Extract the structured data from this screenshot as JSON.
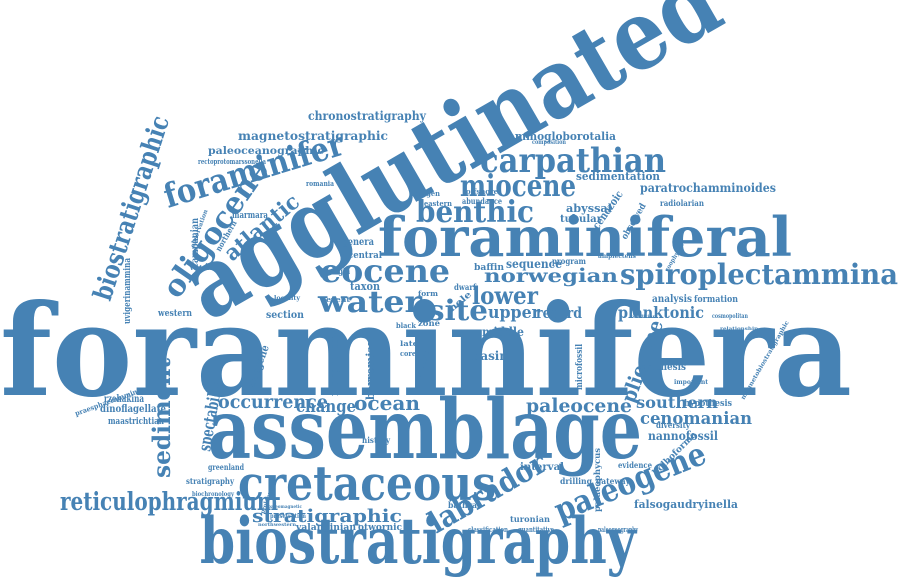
{
  "cloud": {
    "color": "#4682b4",
    "words": [
      "foraminifera",
      "agglutinated",
      "assemblage",
      "biostratigraphy",
      "foraminiferal",
      "cretaceous",
      "carpathian",
      "foraminifer",
      "biostratigraphic",
      "spiroplectammina",
      "eocene",
      "miocene",
      "benthic",
      "oligocene",
      "water",
      "paleogene",
      "labrador",
      "reticulophragmium",
      "stratigraphic",
      "sediment",
      "paleocene",
      "occurrence",
      "site",
      "lower",
      "norwegian",
      "atlantic",
      "pliocene",
      "cenomanian",
      "southern",
      "ocean",
      "change",
      "upper",
      "planktonic",
      "spectabilis",
      "magnetostratigraphic",
      "chronostratigraphy",
      "ammogloborotalia",
      "paratrochamminoides",
      "sedimentation",
      "nannofossil",
      "falsogaudryinella",
      "record",
      "middle",
      "basin",
      "interval",
      "dinoflagellate",
      "maastrichtian",
      "turonian",
      "morphology",
      "barremian",
      "taxon",
      "section",
      "paleoceanographic",
      "campanian",
      "uvigerinammina",
      "rectoprotomarssonella",
      "rzehakina",
      "abyssal",
      "tubular",
      "cenozoic",
      "radiolarian",
      "synthesis",
      "hypothesis",
      "diversity",
      "bolboforma",
      "microfossil",
      "neogene",
      "valanginian",
      "otwornic",
      "bathyal",
      "stratigraphy",
      "greenland",
      "history",
      "sequence",
      "genera",
      "central",
      "baffin",
      "analysis",
      "formation",
      "abundance",
      "offshore",
      "eastern",
      "marmara",
      "northern",
      "observed",
      "western",
      "margin",
      "drilling",
      "gateway",
      "evidence",
      "classification",
      "quantitative",
      "paleogeography",
      "preservation",
      "biochronology",
      "program",
      "hole",
      "zone",
      "black",
      "dwarf",
      "event",
      "form",
      "late",
      "core",
      "strait",
      "amplectens",
      "composition",
      "observation",
      "venezuela",
      "romania",
      "oxygen",
      "paleomagnetic",
      "northwestern",
      "important",
      "cosmopolitan",
      "relationship",
      "condition",
      "magnetobiostratigraphic",
      "palaeophycus",
      "zoophycos",
      "praesphaerammina",
      "prolongatus",
      "locality"
    ]
  }
}
